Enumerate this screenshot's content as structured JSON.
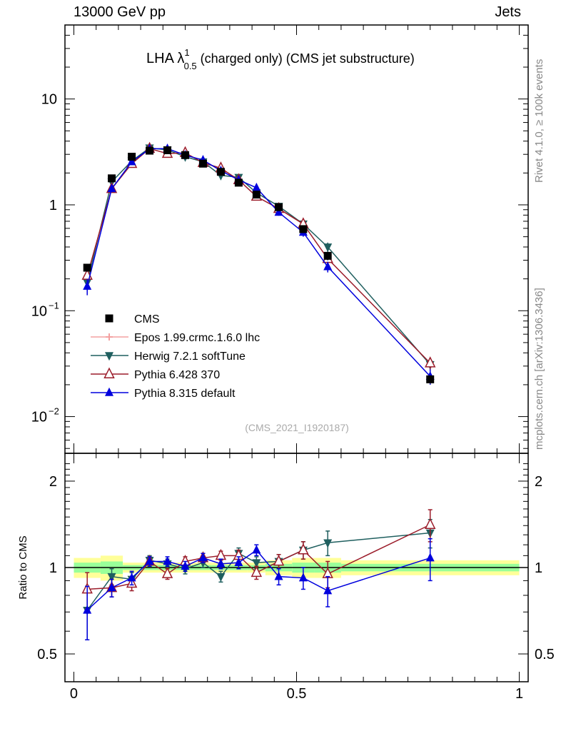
{
  "header": {
    "energy_label": "13000 GeV pp",
    "category_label": "Jets",
    "side_note_top": "Rivet 4.1.0, ≥ 100k events",
    "side_note_bottom": "mcplots.cern.ch [arXiv:1306.3436]"
  },
  "chart_data": [
    {
      "type": "scatter",
      "panel": "main",
      "title": "LHA λ^1_0.5 (charged only) (CMS jet substructure)",
      "title_parts": {
        "prefix": "LHA λ",
        "sup": "1",
        "sub": "0.5",
        "suffix": " (charged only) (CMS jet substructure)"
      },
      "watermark": "(CMS_2021_I1920187)",
      "yscale": "log",
      "ylim": [
        0.0045,
        50
      ],
      "xlim": [
        -0.02,
        1.02
      ],
      "ytick_labels": [
        {
          "value": 0.01,
          "base": "10",
          "exp": "−2"
        },
        {
          "value": 0.1,
          "base": "10",
          "exp": "−1"
        },
        {
          "value": 1,
          "base": "1",
          "exp": ""
        },
        {
          "value": 10,
          "base": "10",
          "exp": ""
        }
      ],
      "legend_position": "lower-left",
      "x": [
        0.03,
        0.085,
        0.13,
        0.17,
        0.21,
        0.25,
        0.29,
        0.33,
        0.37,
        0.41,
        0.46,
        0.515,
        0.57,
        0.8
      ],
      "bin_edges": [
        0,
        0.06,
        0.11,
        0.15,
        0.19,
        0.23,
        0.27,
        0.31,
        0.35,
        0.39,
        0.43,
        0.49,
        0.54,
        0.6,
        1.0
      ],
      "series": [
        {
          "name": "CMS",
          "color": "#000000",
          "marker": "square",
          "values": [
            0.255,
            1.78,
            2.85,
            3.25,
            3.28,
            2.95,
            2.45,
            2.05,
            1.62,
            1.25,
            0.95,
            0.59,
            0.33,
            0.0225
          ],
          "errors": [
            0.02,
            0.08,
            0.1,
            0.1,
            0.1,
            0.09,
            0.08,
            0.07,
            0.06,
            0.05,
            0.04,
            0.04,
            0.03,
            0.002
          ]
        },
        {
          "name": "Epos 1.99.crmc.1.6.0 lhc",
          "color": "#f4a0a0",
          "marker": "cross",
          "values": []
        },
        {
          "name": "Herwig 7.2.1 softTune",
          "color": "#1f5f5f",
          "marker": "triangle-down",
          "values": [
            0.185,
            1.65,
            2.6,
            3.45,
            3.3,
            2.85,
            2.55,
            1.9,
            1.82,
            1.3,
            0.97,
            0.66,
            0.4,
            0.031
          ],
          "errors": [
            0.03,
            0.08,
            0.1,
            0.12,
            0.12,
            0.1,
            0.09,
            0.08,
            0.08,
            0.07,
            0.06,
            0.05,
            0.04,
            0.004
          ]
        },
        {
          "name": "Pythia 6.428 370",
          "color": "#9b1c2a",
          "marker": "triangle-open",
          "values": [
            0.215,
            1.42,
            2.45,
            3.4,
            3.05,
            3.1,
            2.5,
            2.22,
            1.72,
            1.2,
            0.92,
            0.66,
            0.31,
            0.032
          ],
          "errors": [
            0.03,
            0.08,
            0.1,
            0.12,
            0.12,
            0.1,
            0.09,
            0.08,
            0.08,
            0.07,
            0.06,
            0.05,
            0.03,
            0.004
          ]
        },
        {
          "name": "Pythia 8.315 default",
          "color": "#0000dd",
          "marker": "triangle-up",
          "values": [
            0.17,
            1.42,
            2.55,
            3.38,
            3.4,
            2.95,
            2.65,
            2.1,
            1.72,
            1.45,
            0.85,
            0.55,
            0.26,
            0.024
          ],
          "errors": [
            0.03,
            0.08,
            0.1,
            0.12,
            0.12,
            0.1,
            0.09,
            0.08,
            0.08,
            0.07,
            0.06,
            0.05,
            0.03,
            0.004
          ]
        }
      ]
    },
    {
      "type": "scatter",
      "panel": "ratio",
      "ylabel": "Ratio to CMS",
      "yscale": "log",
      "ylim": [
        0.4,
        2.5
      ],
      "xlim": [
        -0.02,
        1.02
      ],
      "ytick_labels": [
        {
          "value": 0.5,
          "label": "0.5"
        },
        {
          "value": 1,
          "label": "1"
        },
        {
          "value": 2,
          "label": "2"
        }
      ],
      "xtick_labels": [
        {
          "value": 0,
          "label": "0"
        },
        {
          "value": 0.5,
          "label": "0.5"
        },
        {
          "value": 1,
          "label": "1"
        }
      ],
      "reference_line": 1,
      "x": [
        0.03,
        0.085,
        0.13,
        0.17,
        0.21,
        0.25,
        0.29,
        0.33,
        0.37,
        0.41,
        0.46,
        0.515,
        0.57,
        0.8
      ],
      "band_inner": [
        0.04,
        0.05,
        0.02,
        0.02,
        0.02,
        0.02,
        0.02,
        0.02,
        0.02,
        0.02,
        0.03,
        0.04,
        0.04,
        0.03
      ],
      "band_outer": [
        0.08,
        0.1,
        0.04,
        0.04,
        0.04,
        0.04,
        0.04,
        0.04,
        0.04,
        0.04,
        0.06,
        0.08,
        0.08,
        0.06
      ],
      "series": [
        {
          "name": "Herwig 7.2.1 softTune",
          "color": "#1f5f5f",
          "marker": "triangle-down",
          "values": [
            0.71,
            0.93,
            0.91,
            1.06,
            1.03,
            0.99,
            1.04,
            0.93,
            1.12,
            1.04,
            1.05,
            1.15,
            1.22,
            1.32
          ],
          "errors": [
            0.15,
            0.06,
            0.05,
            0.04,
            0.04,
            0.04,
            0.04,
            0.04,
            0.05,
            0.05,
            0.06,
            0.08,
            0.12,
            0.15
          ]
        },
        {
          "name": "Pythia 6.428 370",
          "color": "#9b1c2a",
          "marker": "triangle-open",
          "values": [
            0.84,
            0.85,
            0.88,
            1.05,
            0.95,
            1.05,
            1.08,
            1.1,
            1.1,
            0.96,
            1.05,
            1.15,
            0.95,
            1.41
          ],
          "errors": [
            0.12,
            0.06,
            0.05,
            0.04,
            0.04,
            0.04,
            0.04,
            0.04,
            0.05,
            0.05,
            0.06,
            0.08,
            0.1,
            0.18
          ]
        },
        {
          "name": "Pythia 8.315 default",
          "color": "#0000dd",
          "marker": "triangle-up",
          "values": [
            0.71,
            0.85,
            0.92,
            1.05,
            1.05,
            1.01,
            1.08,
            1.03,
            1.04,
            1.15,
            0.93,
            0.92,
            0.83,
            1.08
          ],
          "errors": [
            0.15,
            0.06,
            0.05,
            0.04,
            0.04,
            0.04,
            0.04,
            0.04,
            0.05,
            0.05,
            0.06,
            0.08,
            0.1,
            0.18
          ]
        }
      ]
    }
  ]
}
